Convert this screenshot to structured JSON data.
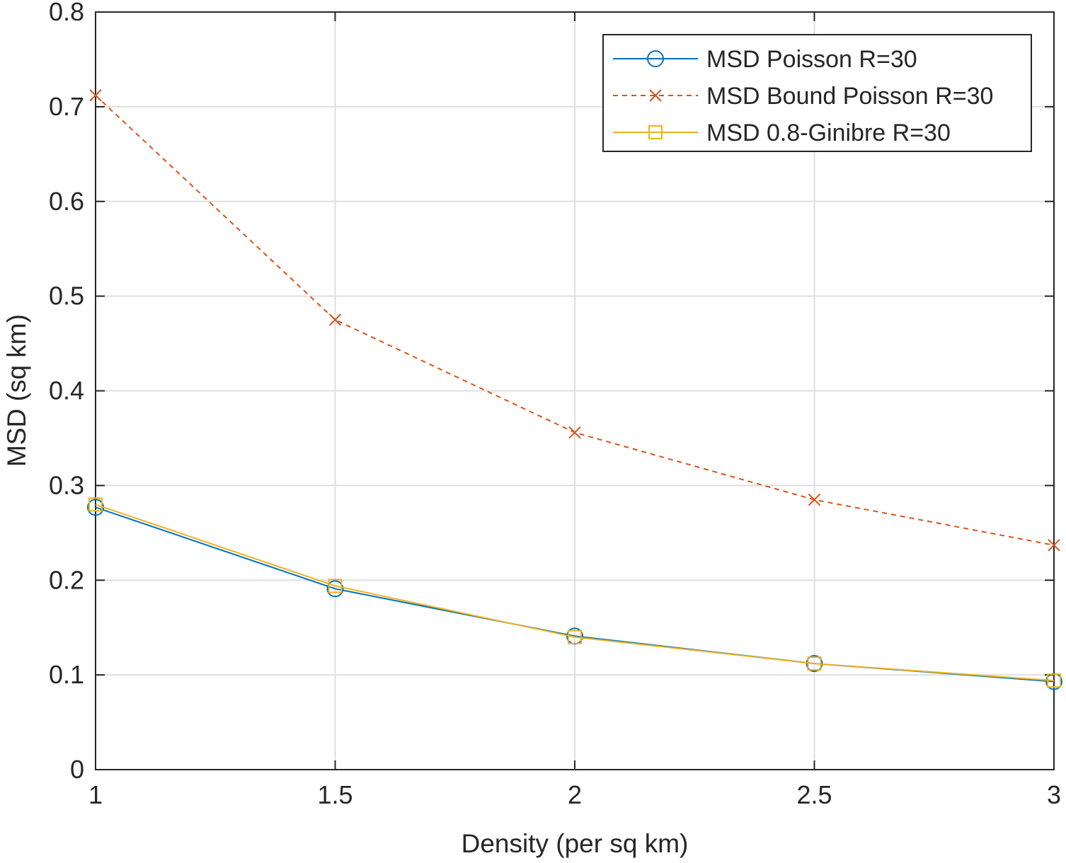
{
  "chart_data": {
    "type": "line",
    "title": "",
    "xlabel": "Density (per sq km)",
    "ylabel": "MSD (sq km)",
    "xlim": [
      1,
      3
    ],
    "ylim": [
      0,
      0.8
    ],
    "x_ticks": [
      "1",
      "1.5",
      "2",
      "2.5",
      "3"
    ],
    "y_ticks": [
      "0",
      "0.1",
      "0.2",
      "0.3",
      "0.4",
      "0.5",
      "0.6",
      "0.7",
      "0.8"
    ],
    "grid": true,
    "legend_position": "top-right",
    "x": [
      1,
      1.5,
      2,
      2.5,
      3
    ],
    "series": [
      {
        "name": "MSD Poisson R=30",
        "values": [
          0.277,
          0.191,
          0.141,
          0.112,
          0.093
        ],
        "color": "#0072BD",
        "marker": "circle",
        "line": "solid"
      },
      {
        "name": "MSD Bound Poisson R=30",
        "values": [
          0.712,
          0.475,
          0.356,
          0.285,
          0.237
        ],
        "color": "#D95319",
        "marker": "x",
        "line": "dashed"
      },
      {
        "name": "MSD 0.8-Ginibre R=30",
        "values": [
          0.28,
          0.194,
          0.14,
          0.112,
          0.094
        ],
        "color": "#EDB120",
        "marker": "square",
        "line": "solid"
      }
    ]
  }
}
